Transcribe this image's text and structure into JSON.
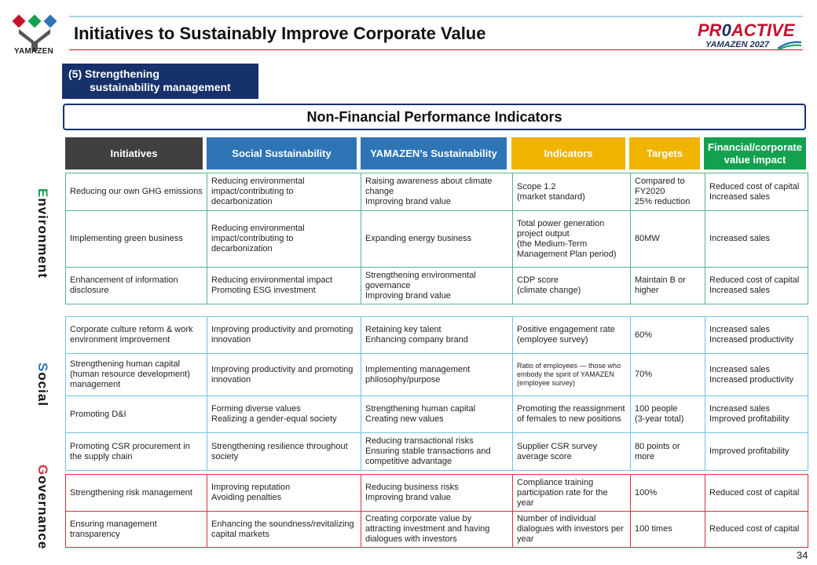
{
  "header": {
    "logo_text": "YAMAZEN",
    "title": "Initiatives to Sustainably Improve Corporate Value",
    "brand_main_a": "PR",
    "brand_main_b": "ACTIVE",
    "brand_sub": "YAMAZEN 2027"
  },
  "section": {
    "line1": "(5) Strengthening",
    "line2": "sustainability management",
    "box_title": "Non-Financial Performance Indicators"
  },
  "columns": [
    {
      "label": "Initiatives",
      "color": "#404040"
    },
    {
      "label": "Social Sustainability",
      "color": "#2e75b6"
    },
    {
      "label": "YAMAZEN’s Sustainability",
      "color": "#2e75b6"
    },
    {
      "label": "Indicators",
      "color": "#f0b400"
    },
    {
      "label": "Targets",
      "color": "#f0b400"
    },
    {
      "label": "Financial/corporate value impact",
      "color": "#13a150"
    }
  ],
  "categories": {
    "environment": {
      "first": "E",
      "rest": "nvironment",
      "color_first": "#13a150"
    },
    "social": {
      "first": "S",
      "rest": "ocial",
      "color_first": "#2e75b6"
    },
    "governance": {
      "first": "G",
      "rest": "overnance",
      "color_first": "#d3333c"
    }
  },
  "environment_rows": [
    [
      "Reducing our own GHG emissions",
      "Reducing environmental impact/contributing to decarbonization",
      "Raising awareness about climate change\nImproving brand value",
      "Scope 1.2\n(market standard)",
      "Compared to FY2020\n25% reduction",
      "Reduced cost of capital\nIncreased sales"
    ],
    [
      "Implementing green business",
      "Reducing environmental impact/contributing to decarbonization",
      "Expanding energy business",
      "Total power generation project output\n(the Medium-Term Management Plan period)",
      "80MW",
      "Increased sales"
    ],
    [
      "Enhancement of information disclosure",
      "Reducing environmental impact\nPromoting ESG investment",
      "Strengthening environmental governance\nImproving brand value",
      "CDP score\n(climate change)",
      "Maintain B or higher",
      "Reduced cost of capital\nIncreased sales"
    ]
  ],
  "social_rows": [
    [
      "Corporate culture reform & work environment improvement",
      "Improving productivity and promoting innovation",
      "Retaining key talent\nEnhancing company brand",
      "Positive engagement rate (employee survey)",
      "60%",
      "Increased sales\nIncreased productivity"
    ],
    [
      "Strengthening human capital (human resource development) management",
      "Improving productivity and promoting innovation",
      "Implementing management philosophy/purpose",
      "Ratio of employees — those who embody the spirit of YAMAZEN (employee survey)",
      "70%",
      "Increased sales\nIncreased productivity"
    ],
    [
      "Promoting D&I",
      "Forming diverse values\nRealizing a gender-equal society",
      "Strengthening human capital\nCreating new values",
      "Promoting the reassignment of females to new positions",
      "100 people\n(3-year total)",
      "Increased sales\nImproved profitability"
    ],
    [
      "Promoting CSR procurement in the supply chain",
      "Strengthening resilience throughout society",
      "Reducing transactional risks\nEnsuring stable transactions and competitive advantage",
      "Supplier CSR survey average score",
      "80 points or more",
      "Improved profitability"
    ]
  ],
  "governance_rows": [
    [
      "Strengthening risk management",
      "Improving reputation\nAvoiding penalties",
      "Reducing business risks\nImproving brand value",
      "Compliance training participation rate for the year",
      "100%",
      "Reduced cost of capital"
    ],
    [
      "Ensuring management transparency",
      "Enhancing the soundness/revitalizing capital markets",
      "Creating corporate value by attracting investment and having dialogues with investors",
      "Number of individual dialogues with investors per year",
      "100 times",
      "Reduced cost of capital"
    ]
  ],
  "page_number": "34"
}
